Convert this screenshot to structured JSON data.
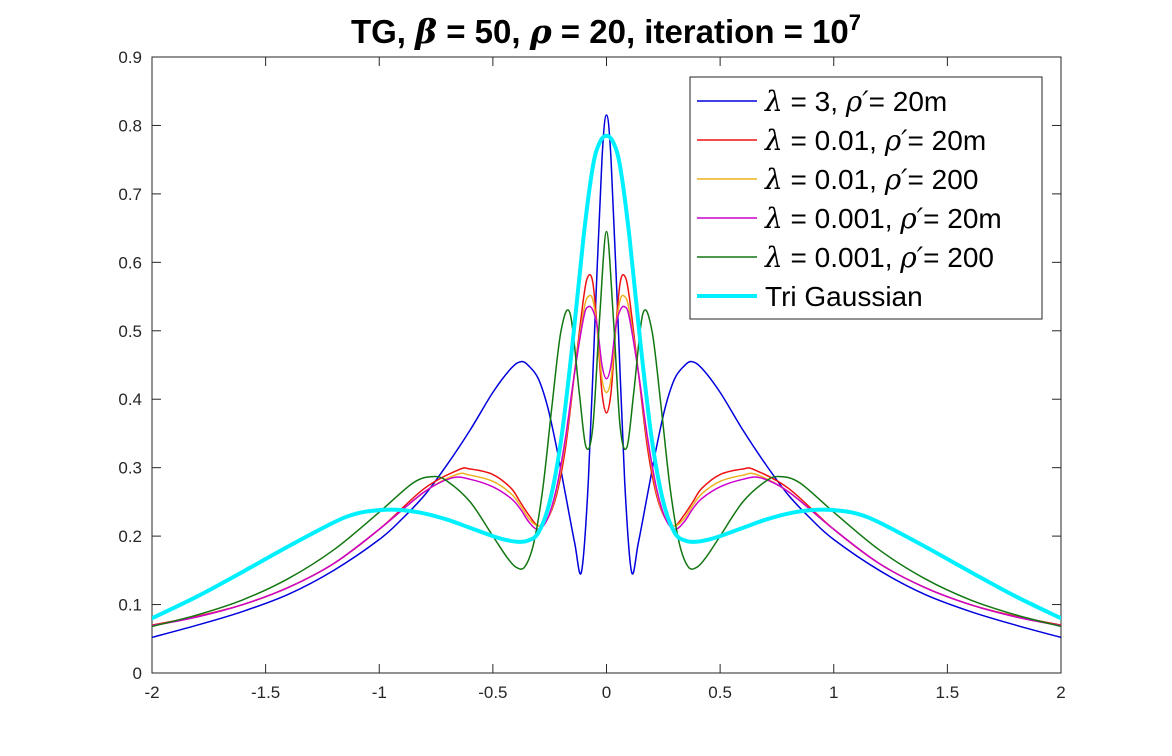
{
  "chart_data": {
    "type": "line",
    "title": {
      "prefix": "TG, ",
      "beta_symbol": "β",
      "beta_text": " = 50, ",
      "rho_symbol": "ρ",
      "rho_text": " = 20, iteration = 10",
      "exponent": "7"
    },
    "xlabel": "",
    "ylabel": "",
    "xlim": [
      -2,
      2
    ],
    "ylim": [
      0,
      0.9
    ],
    "xticks": [
      -2,
      -1.5,
      -1,
      -0.5,
      0,
      0.5,
      1,
      1.5,
      2
    ],
    "xtick_labels": [
      "-2",
      "-1.5",
      "-1",
      "-0.5",
      "0",
      "0.5",
      "1",
      "1.5",
      "2"
    ],
    "yticks": [
      0,
      0.1,
      0.2,
      0.3,
      0.4,
      0.5,
      0.6,
      0.7,
      0.8,
      0.9
    ],
    "ytick_labels": [
      "0",
      "0.1",
      "0.2",
      "0.3",
      "0.4",
      "0.5",
      "0.6",
      "0.7",
      "0.8",
      "0.9"
    ],
    "grid": false,
    "legend_position": "top-right",
    "symmetric_about_zero": true,
    "series": [
      {
        "legend": {
          "lambda_symbol": "λ",
          "lambda_text": " = 3, ",
          "rho_symbol": "ρ′",
          "rho_text": "= 20m"
        },
        "color": "#0000dd",
        "line_width": 1.5,
        "x": [
          0,
          0.02,
          0.05,
          0.08,
          0.11,
          0.14,
          0.18,
          0.22,
          0.26,
          0.3,
          0.34,
          0.375,
          0.42,
          0.5,
          0.6,
          0.7,
          0.8,
          0.9,
          1.0,
          1.2,
          1.4,
          1.6,
          1.8,
          2.0
        ],
        "y": [
          0.815,
          0.75,
          0.52,
          0.28,
          0.148,
          0.19,
          0.26,
          0.33,
          0.39,
          0.43,
          0.448,
          0.455,
          0.445,
          0.41,
          0.355,
          0.305,
          0.26,
          0.225,
          0.195,
          0.15,
          0.115,
          0.09,
          0.07,
          0.052
        ]
      },
      {
        "legend": {
          "lambda_symbol": "λ",
          "lambda_text": " = 0.01, ",
          "rho_symbol": "ρ′",
          "rho_text": "= 20m"
        },
        "color": "#ee1111",
        "line_width": 1.5,
        "x": [
          0,
          0.02,
          0.04,
          0.06,
          0.08,
          0.1,
          0.14,
          0.18,
          0.22,
          0.26,
          0.3,
          0.34,
          0.38,
          0.42,
          0.5,
          0.6,
          0.65,
          0.8,
          1.0,
          1.2,
          1.4,
          1.6,
          1.8,
          2.0
        ],
        "y": [
          0.38,
          0.41,
          0.5,
          0.57,
          0.58,
          0.55,
          0.44,
          0.33,
          0.26,
          0.225,
          0.215,
          0.23,
          0.25,
          0.27,
          0.29,
          0.298,
          0.297,
          0.27,
          0.21,
          0.16,
          0.125,
          0.1,
          0.083,
          0.07
        ]
      },
      {
        "legend": {
          "lambda_symbol": "λ",
          "lambda_text": " = 0.01, ",
          "rho_symbol": "ρ′",
          "rho_text": "= 200"
        },
        "color": "#edb120",
        "line_width": 1.5,
        "x": [
          0,
          0.02,
          0.04,
          0.06,
          0.08,
          0.1,
          0.14,
          0.18,
          0.22,
          0.26,
          0.3,
          0.34,
          0.38,
          0.42,
          0.5,
          0.6,
          0.66,
          0.8,
          1.0,
          1.2,
          1.4,
          1.6,
          1.8,
          2.0
        ],
        "y": [
          0.41,
          0.43,
          0.5,
          0.545,
          0.55,
          0.53,
          0.44,
          0.34,
          0.265,
          0.225,
          0.215,
          0.225,
          0.245,
          0.262,
          0.28,
          0.289,
          0.29,
          0.265,
          0.21,
          0.16,
          0.125,
          0.1,
          0.082,
          0.069
        ]
      },
      {
        "legend": {
          "lambda_symbol": "λ",
          "lambda_text": " = 0.001, ",
          "rho_symbol": "ρ′",
          "rho_text": "= 20m"
        },
        "color": "#cc00cc",
        "line_width": 1.5,
        "x": [
          0,
          0.02,
          0.04,
          0.06,
          0.08,
          0.1,
          0.14,
          0.18,
          0.22,
          0.26,
          0.3,
          0.34,
          0.38,
          0.42,
          0.5,
          0.6,
          0.68,
          0.8,
          1.0,
          1.2,
          1.4,
          1.6,
          1.8,
          2.0
        ],
        "y": [
          0.43,
          0.45,
          0.505,
          0.53,
          0.535,
          0.52,
          0.44,
          0.345,
          0.27,
          0.225,
          0.21,
          0.22,
          0.24,
          0.255,
          0.272,
          0.283,
          0.285,
          0.265,
          0.21,
          0.16,
          0.125,
          0.1,
          0.082,
          0.069
        ]
      },
      {
        "legend": {
          "lambda_symbol": "λ",
          "lambda_text": " = 0.001, ",
          "rho_symbol": "ρ′",
          "rho_text": "= 200"
        },
        "color": "#117711",
        "line_width": 1.5,
        "x": [
          0,
          0.03,
          0.06,
          0.09,
          0.12,
          0.16,
          0.2,
          0.24,
          0.28,
          0.32,
          0.36,
          0.4,
          0.44,
          0.5,
          0.6,
          0.7,
          0.76,
          0.85,
          1.0,
          1.2,
          1.4,
          1.6,
          1.8,
          2.0
        ],
        "y": [
          0.645,
          0.52,
          0.36,
          0.33,
          0.41,
          0.525,
          0.5,
          0.39,
          0.27,
          0.19,
          0.155,
          0.155,
          0.17,
          0.2,
          0.25,
          0.28,
          0.287,
          0.278,
          0.235,
          0.18,
          0.138,
          0.107,
          0.085,
          0.068
        ]
      },
      {
        "legend": {
          "lambda_symbol": "",
          "lambda_text": "Tri Gaussian",
          "rho_symbol": "",
          "rho_text": ""
        },
        "color": "#00f0ff",
        "line_width": 4,
        "x": [
          0,
          0.03,
          0.06,
          0.1,
          0.15,
          0.2,
          0.25,
          0.3,
          0.35,
          0.4,
          0.45,
          0.5,
          0.6,
          0.7,
          0.8,
          0.9,
          1.0,
          1.1,
          1.2,
          1.4,
          1.6,
          1.8,
          2.0
        ],
        "y": [
          0.785,
          0.775,
          0.74,
          0.64,
          0.48,
          0.34,
          0.25,
          0.205,
          0.193,
          0.192,
          0.195,
          0.2,
          0.212,
          0.224,
          0.233,
          0.238,
          0.238,
          0.233,
          0.22,
          0.185,
          0.148,
          0.112,
          0.08
        ]
      }
    ]
  }
}
